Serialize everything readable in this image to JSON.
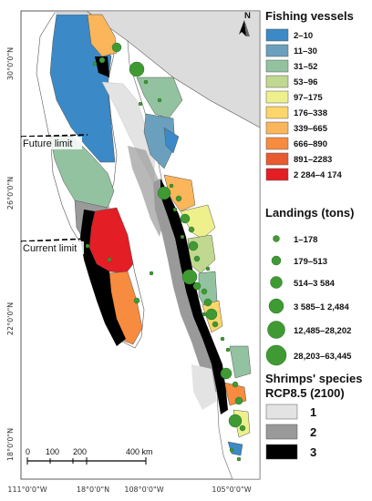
{
  "labels": {
    "future_limit": "Future limit",
    "current_limit": "Current limit"
  },
  "axes": {
    "left": [
      "30°0'0\"N",
      "26°0'0\"N",
      "22°0'0\"N",
      "18°0'0\"N"
    ],
    "bottom": [
      "111°0'0\"W",
      "18°0'0\"N",
      "108°0'0\"W",
      "105°0'0\"W"
    ]
  },
  "north_arrow": {
    "letter": "N"
  },
  "scale_bar": {
    "ticks": [
      "0",
      "100",
      "200",
      "400 km"
    ]
  },
  "legend": {
    "vessels": {
      "title": "Fishing vessels",
      "items": [
        {
          "label": "2–10",
          "color": "#3b89c6"
        },
        {
          "label": "11–30",
          "color": "#6aa0bd"
        },
        {
          "label": "31–52",
          "color": "#93c2a1"
        },
        {
          "label": "53–96",
          "color": "#c0d890"
        },
        {
          "label": "97–175",
          "color": "#eef08c"
        },
        {
          "label": "176–338",
          "color": "#fcd66a"
        },
        {
          "label": "339–665",
          "color": "#fbb55a"
        },
        {
          "label": "666–890",
          "color": "#f78b3f"
        },
        {
          "label": "891–2283",
          "color": "#e85a2f"
        },
        {
          "label": "2 284–4 174",
          "color": "#e31e24"
        }
      ]
    },
    "landings": {
      "title": "Landings (tons)",
      "items": [
        {
          "label": "1–178",
          "size": 1
        },
        {
          "label": "179–513",
          "size": 2
        },
        {
          "label": "514–3 584",
          "size": 3
        },
        {
          "label": "3 585–1 2,484",
          "size": 4
        },
        {
          "label": "12,485–28,202",
          "size": 5
        },
        {
          "label": "28,203–63,445",
          "size": 6
        }
      ]
    },
    "shrimps": {
      "title_line1": "Shrimps' species",
      "title_line2": "RCP8.5 (2100)",
      "items": [
        {
          "label": "1",
          "color": "#e3e3e3"
        },
        {
          "label": "2",
          "color": "#9a9a9a"
        },
        {
          "label": "3",
          "color": "#000000"
        }
      ]
    }
  }
}
